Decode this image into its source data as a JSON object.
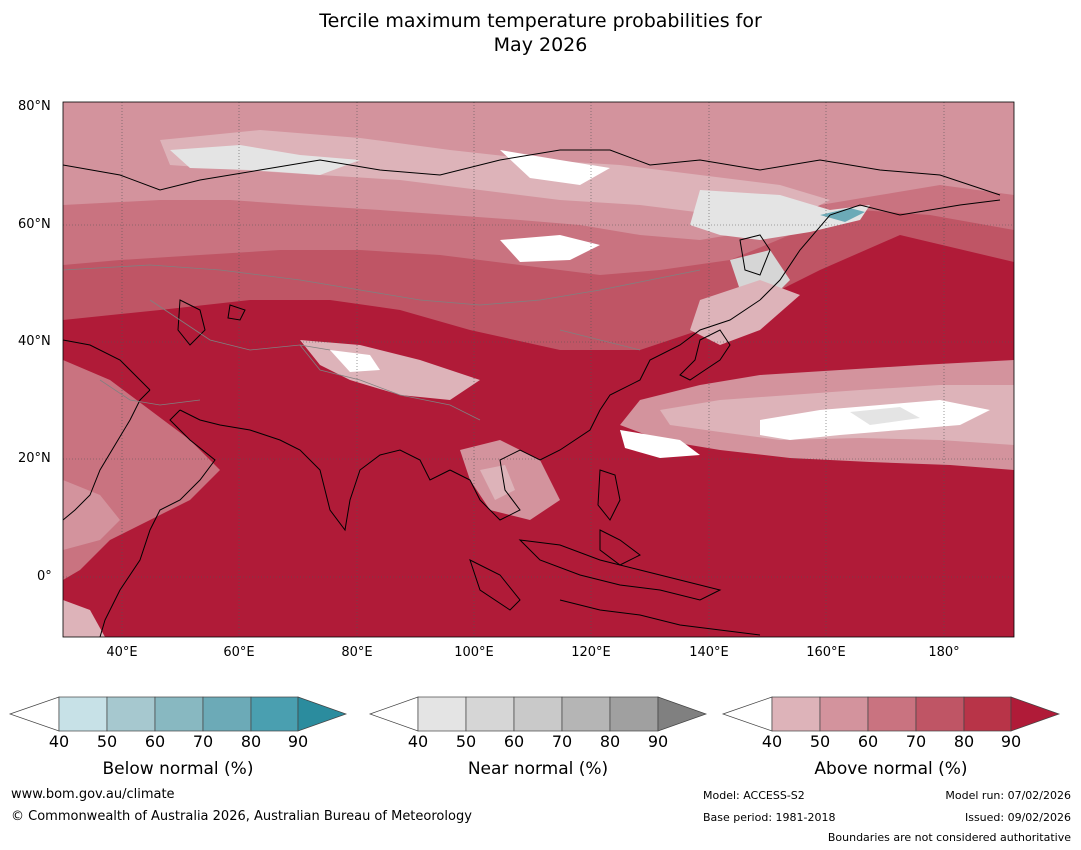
{
  "title": {
    "line1": "Tercile maximum temperature probabilities for",
    "line2": "May 2026"
  },
  "map": {
    "lat_labels": [
      "80°N",
      "60°N",
      "40°N",
      "20°N",
      "0°"
    ],
    "lon_labels": [
      "40°E",
      "60°E",
      "80°E",
      "100°E",
      "120°E",
      "140°E",
      "160°E",
      "180°"
    ],
    "lat_range": [
      -10,
      80
    ],
    "lon_range": [
      30,
      192
    ],
    "dominant_category": "Above normal"
  },
  "legend": {
    "ticks": [
      "40",
      "50",
      "60",
      "70",
      "80",
      "90"
    ],
    "below": {
      "title": "Below normal (%)",
      "colors": [
        "#c7e1e7",
        "#a6c8cf",
        "#88b8c1",
        "#6caab7",
        "#4a9fb0",
        "#2b8c9e"
      ]
    },
    "near": {
      "title": "Near normal (%)",
      "colors": [
        "#e4e4e4",
        "#d6d6d6",
        "#c9c9c9",
        "#b5b5b5",
        "#a0a0a0",
        "#808080"
      ]
    },
    "above": {
      "title": "Above normal (%)",
      "colors": [
        "#ddb3b9",
        "#d3939d",
        "#c97380",
        "#bf5565",
        "#b83448",
        "#b01b38"
      ]
    }
  },
  "footer": {
    "url": "www.bom.gov.au/climate",
    "copyright": "© Commonwealth of Australia 2026, Australian Bureau of Meteorology",
    "model": "Model: ACCESS-S2",
    "base_period": "Base period: 1981-2018",
    "model_run": "Model run: 07/02/2026",
    "issued": "Issued: 09/02/2026",
    "disclaimer": "Boundaries are not considered authoritative"
  }
}
